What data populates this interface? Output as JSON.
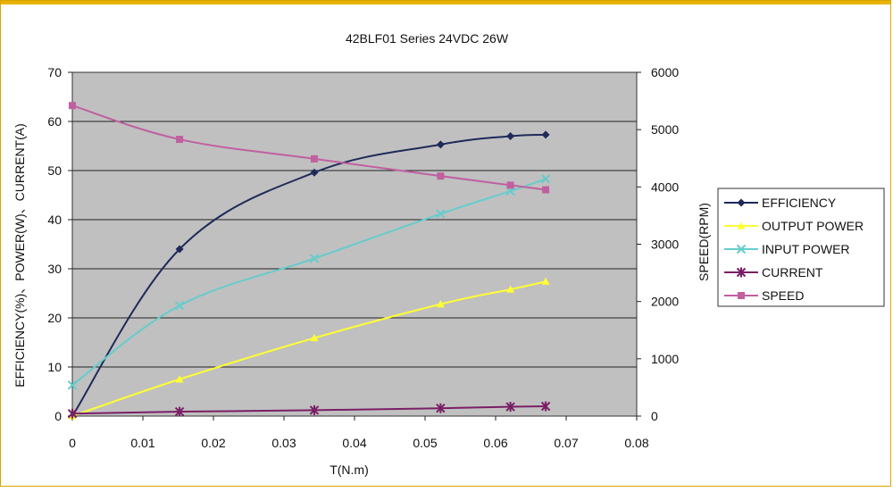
{
  "chart_data": {
    "type": "line",
    "title": "42BLF01 Series 24VDC 26W",
    "xlabel": "T(N.m)",
    "ylabel": "EFFICIENCY(%)、POWER(W)、CURRENT(A)",
    "y2label": "SPEED(RPM)",
    "xlim": [
      0,
      0.08
    ],
    "ylim": [
      0,
      70
    ],
    "y2lim": [
      0,
      6000
    ],
    "x_ticks": [
      "0",
      "0.01",
      "0.02",
      "0.03",
      "0.04",
      "0.05",
      "0.06",
      "0.07",
      "0.08"
    ],
    "y_ticks": [
      "0",
      "10",
      "20",
      "30",
      "40",
      "50",
      "60",
      "70"
    ],
    "y2_ticks": [
      "0",
      "1000",
      "2000",
      "3000",
      "4000",
      "5000",
      "6000"
    ],
    "grid": "horizontal",
    "legend_position": "right",
    "background": "#c0c0c0",
    "series": [
      {
        "name": "EFFICIENCY",
        "axis": "left",
        "color": "#1f2a5a",
        "marker": "diamond",
        "x": [
          0,
          0.0152,
          0.0343,
          0.0522,
          0.0621,
          0.0671
        ],
        "y": [
          0,
          34,
          49.6,
          55.3,
          57,
          57.3
        ]
      },
      {
        "name": "OUTPUT POWER",
        "axis": "left",
        "color": "#ffff33",
        "marker": "triangle",
        "x": [
          0,
          0.0152,
          0.0343,
          0.0522,
          0.0621,
          0.0671
        ],
        "y": [
          0,
          7.5,
          15.9,
          22.8,
          25.8,
          27.4
        ]
      },
      {
        "name": "INPUT POWER",
        "axis": "left",
        "color": "#66cccc",
        "marker": "x",
        "x": [
          0,
          0.0152,
          0.0343,
          0.0522,
          0.0621,
          0.0671
        ],
        "y": [
          6.3,
          22.5,
          32.1,
          41.2,
          45.8,
          48.3
        ]
      },
      {
        "name": "CURRENT",
        "axis": "left",
        "color": "#7a1f66",
        "marker": "star",
        "x": [
          0,
          0.0152,
          0.0343,
          0.0522,
          0.0621,
          0.0671
        ],
        "y": [
          0.5,
          0.9,
          1.2,
          1.6,
          1.9,
          2
        ]
      },
      {
        "name": "SPEED",
        "axis": "right",
        "color": "#c060a0",
        "marker": "square",
        "x": [
          0,
          0.0152,
          0.0343,
          0.0522,
          0.0621,
          0.0671
        ],
        "y": [
          5420,
          4830,
          4490,
          4190,
          4030,
          3950
        ]
      }
    ]
  }
}
